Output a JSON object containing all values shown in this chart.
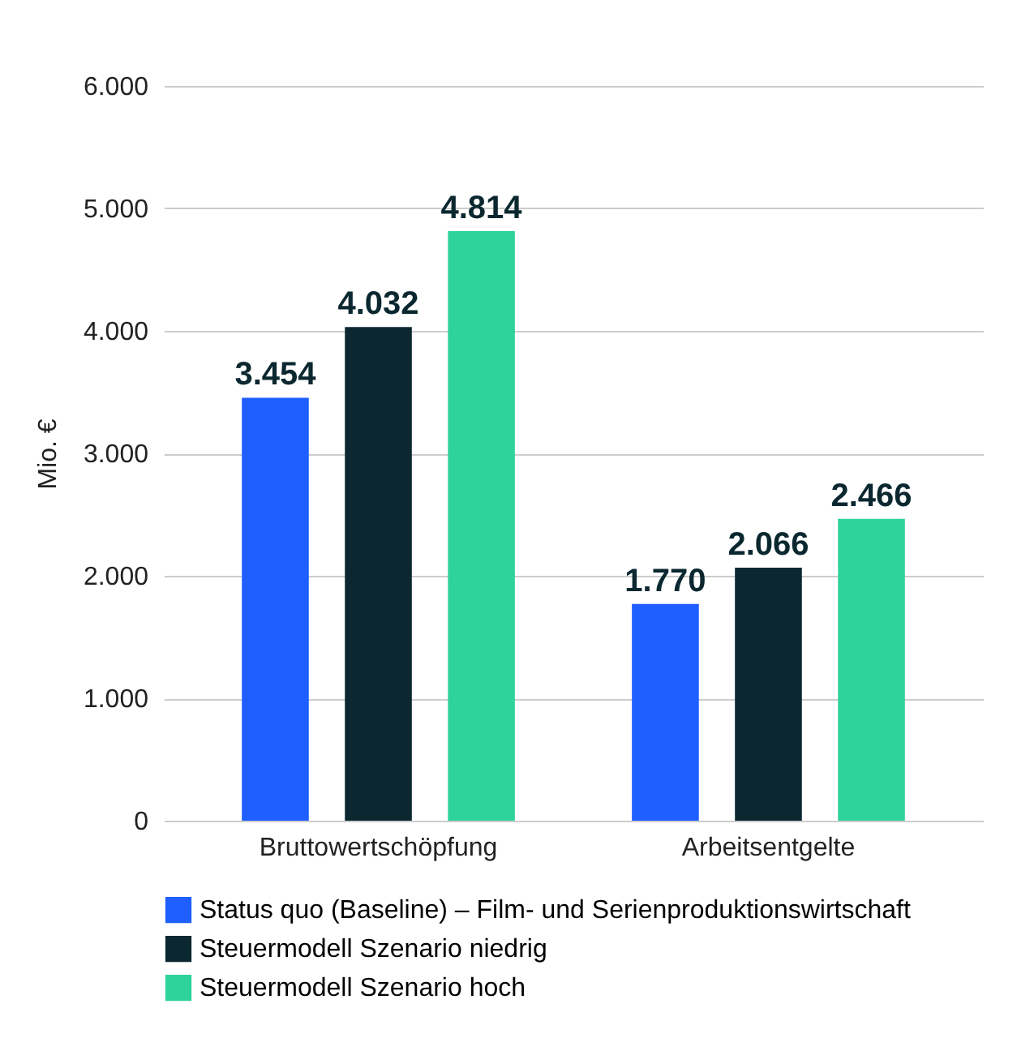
{
  "chart_data": {
    "type": "bar",
    "ylabel": "Mio. €",
    "categories": [
      "Bruttowertschöpfung",
      "Arbeitsentgelte"
    ],
    "series": [
      {
        "name": "Status quo (Baseline) – Film- und Serienproduktionswirtschaft",
        "color": "#1f5fff",
        "values": [
          3454,
          1770
        ],
        "value_labels": [
          "3.454",
          "1.770"
        ]
      },
      {
        "name": "Steuermodell Szenario niedrig",
        "color": "#0b2830",
        "values": [
          4032,
          2066
        ],
        "value_labels": [
          "4.032",
          "2.066"
        ]
      },
      {
        "name": "Steuermodell Szenario hoch",
        "color": "#2ed39b",
        "values": [
          4814,
          2466
        ],
        "value_labels": [
          "4.814",
          "2.466"
        ]
      }
    ],
    "ylim": [
      0,
      6000
    ],
    "yticks": [
      {
        "value": 0,
        "label": "0"
      },
      {
        "value": 1000,
        "label": "1.000"
      },
      {
        "value": 2000,
        "label": "2.000"
      },
      {
        "value": 3000,
        "label": "3.000"
      },
      {
        "value": 4000,
        "label": "4.000"
      },
      {
        "value": 5000,
        "label": "5.000"
      },
      {
        "value": 6000,
        "label": "6.000"
      }
    ],
    "grid": "y",
    "legend": "bottom"
  }
}
